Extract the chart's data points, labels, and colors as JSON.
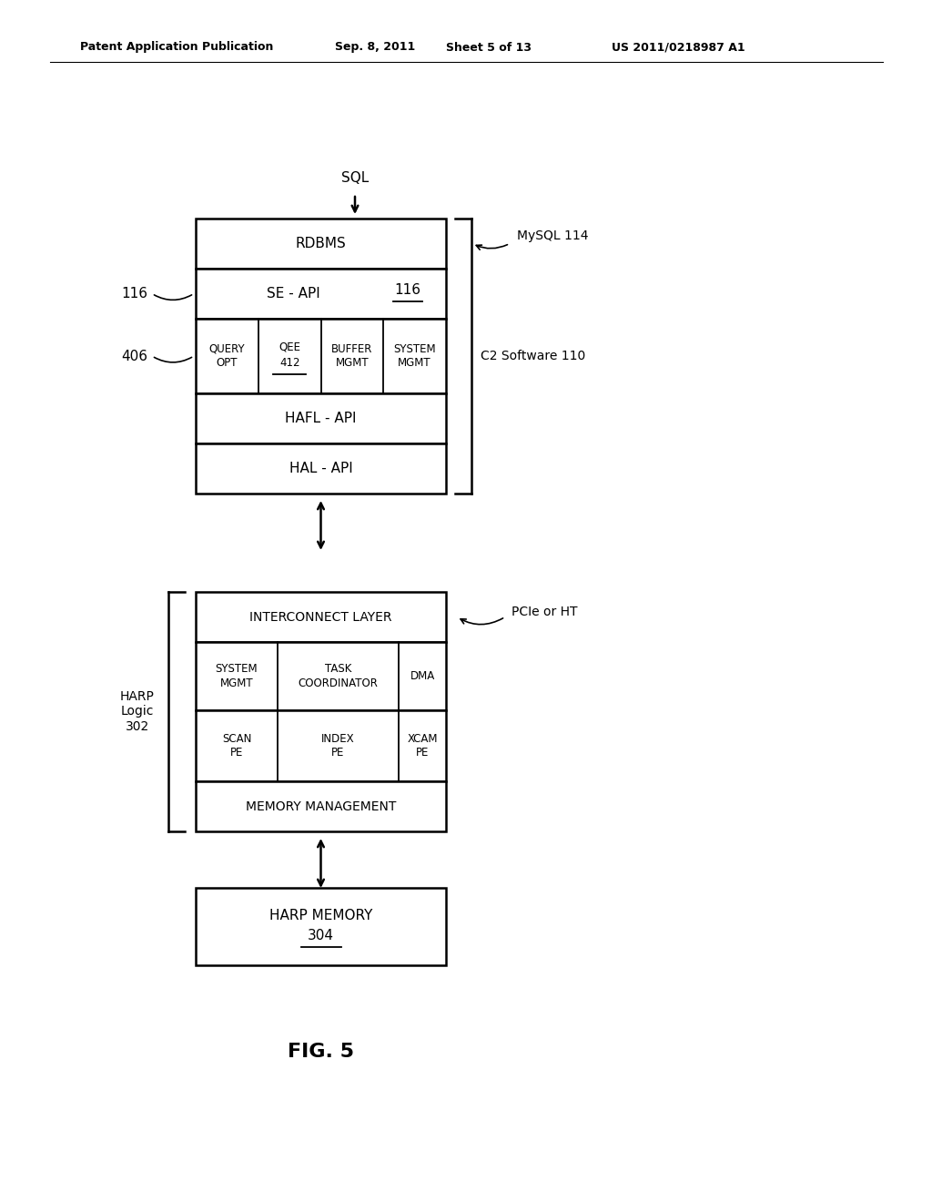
{
  "bg_color": "#ffffff",
  "header_text": "Patent Application Publication",
  "header_date": "Sep. 8, 2011",
  "header_sheet": "Sheet 5 of 13",
  "header_patent": "US 2011/0218987 A1",
  "fig_label": "FIG. 5",
  "sql_label": "SQL",
  "mysql_label": "MySQL 114",
  "c2_label": "C2 Software 110",
  "pcie_label": "PCIe or HT",
  "harp_logic_label": "HARP\nLogic\n302",
  "label_116": "116",
  "label_406": "406",
  "rdbms_text": "RDBMS",
  "seapi_text": "SE - API",
  "seapi_num": "116",
  "query_opt_text": "QUERY\nOPT",
  "qee_top": "QEE",
  "qee_bot": "412",
  "buffer_mgmt_text": "BUFFER\nMGMT",
  "system_mgmt_text": "SYSTEM\nMGMT",
  "hafl_api_text": "HAFL - API",
  "hal_api_text": "HAL - API",
  "interconnect_text": "INTERCONNECT LAYER",
  "sys_mgmt2_text": "SYSTEM\nMGMT",
  "task_coord_text": "TASK\nCOORDINATOR",
  "dma_text": "DMA",
  "scan_pe_text": "SCAN\nPE",
  "index_pe_text": "INDEX\nPE",
  "xcam_pe_text": "XCAM\nPE",
  "memory_mgmt_text": "MEMORY MANAGEMENT",
  "harp_memory_top": "HARP MEMORY",
  "harp_memory_bot": "304"
}
